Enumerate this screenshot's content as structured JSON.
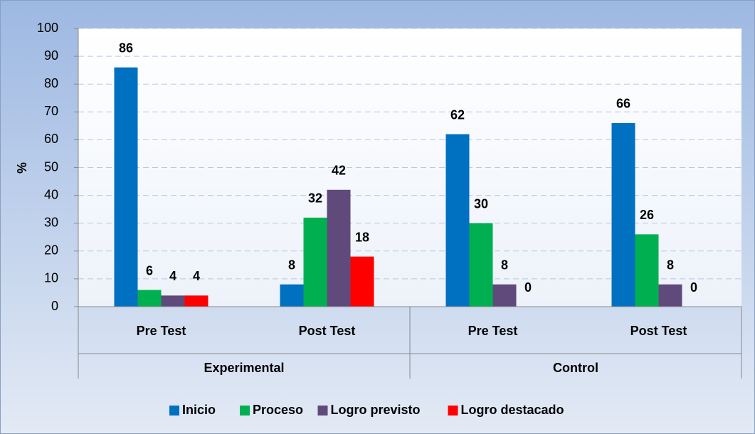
{
  "chart_data": {
    "type": "bar",
    "y_label": "%",
    "categories": [
      "Pre Test",
      "Post Test",
      "Pre Test",
      "Post Test"
    ],
    "groups": [
      "Experimental",
      "Control"
    ],
    "series": [
      {
        "name": "Inicio",
        "color": "#0070c0",
        "values": [
          86,
          8,
          62,
          66
        ]
      },
      {
        "name": "Proceso",
        "color": "#00b050",
        "values": [
          6,
          32,
          30,
          26
        ]
      },
      {
        "name": "Logro previsto",
        "color": "#604a7b",
        "values": [
          4,
          42,
          8,
          8
        ]
      },
      {
        "name": "Logro destacado",
        "color": "#ff0000",
        "values": [
          4,
          18,
          0,
          0
        ]
      }
    ],
    "ylim": [
      0,
      100
    ],
    "yticks": [
      0,
      10,
      20,
      30,
      40,
      50,
      60,
      70,
      80,
      90,
      100
    ],
    "grid": true,
    "legend": "bottom"
  }
}
